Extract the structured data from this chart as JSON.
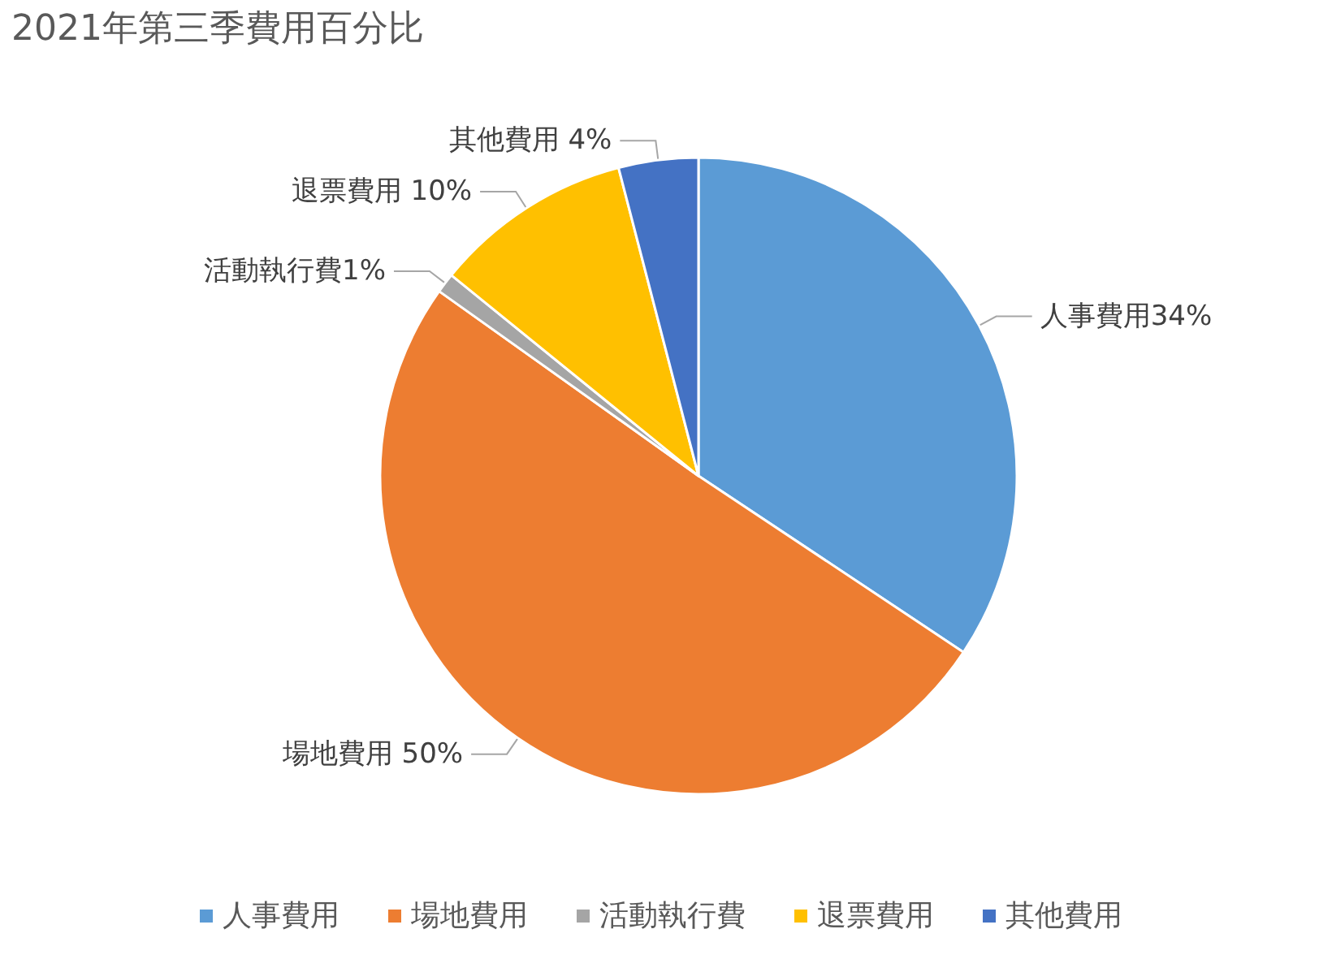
{
  "chart_data": {
    "type": "pie",
    "title": "2021年第三季費用百分比",
    "categories": [
      "人事費用",
      "場地費用",
      "活動執行費",
      "退票費用",
      "其他費用"
    ],
    "values": [
      34,
      50,
      1,
      10,
      4
    ],
    "colors": [
      "#5b9bd5",
      "#ed7d31",
      "#a5a5a5",
      "#ffc000",
      "#4472c4"
    ],
    "value_labels": [
      "人事費用34%",
      "場地費用 50%",
      "活動執行費1%",
      "退票費用 10%",
      "其他費用 4%"
    ],
    "legend": "bottom"
  }
}
